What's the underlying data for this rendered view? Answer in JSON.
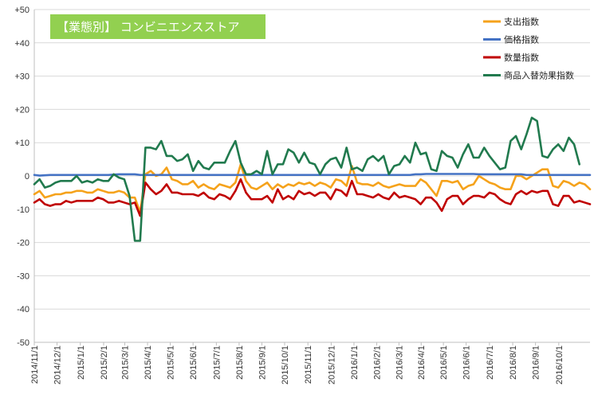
{
  "chart_data": {
    "type": "line",
    "title": "【業態別】 コンビニエンスストア",
    "xlabel": "",
    "ylabel": "",
    "ylim": [
      -50,
      50
    ],
    "y_ticks": [
      50,
      40,
      30,
      20,
      10,
      0,
      -10,
      -20,
      -30,
      -40,
      -50
    ],
    "y_tick_labels": [
      "+50",
      "+40",
      "+30",
      "+20",
      "+10",
      "0",
      "-10",
      "-20",
      "-30",
      "-40",
      "-50"
    ],
    "x_tick_labels": [
      "2014/11/1",
      "2014/12/1",
      "2015/1/1",
      "2015/2/1",
      "2015/3/1",
      "2015/4/1",
      "2015/5/1",
      "2015/6/1",
      "2015/7/1",
      "2015/8/1",
      "2015/9/1",
      "2015/10/1",
      "2015/11/1",
      "2015/12/1",
      "2016/1/1",
      "2016/2/1",
      "2016/3/1",
      "2016/4/1",
      "2016/5/1",
      "2016/6/1",
      "2016/7/1",
      "2016/8/1",
      "2016/9/1",
      "2016/10/1"
    ],
    "x_tick_weeks": [
      0,
      4.3,
      8.7,
      13.1,
      17.1,
      21.4,
      25.7,
      30.0,
      34.4,
      38.7,
      43.0,
      47.3,
      51.7,
      56.1,
      60.4,
      64.7,
      68.9,
      73.1,
      77.3,
      81.6,
      86.0,
      90.4,
      94.7,
      99.1
    ],
    "grid": "horizontal",
    "legend_position": "top-right",
    "series": [
      {
        "name": "支出指数",
        "color": "#f5a21b",
        "values": [
          -5.5,
          -4.5,
          -6.5,
          -6,
          -5.5,
          -5.5,
          -5,
          -5,
          -4.5,
          -4.5,
          -5,
          -5,
          -4,
          -4.5,
          -5,
          -5,
          -4.5,
          -5,
          -6.5,
          -6.5,
          -11,
          0.5,
          1.5,
          0,
          0.5,
          2.5,
          -1,
          -1.5,
          -2.5,
          -2.5,
          -1.5,
          -3.5,
          -2.5,
          -3.5,
          -4,
          -2.5,
          -3,
          -3.5,
          -2,
          3.5,
          -1.5,
          -3.5,
          -4,
          -3,
          -2,
          -4,
          -2.5,
          -3.5,
          -2.5,
          -3,
          -2,
          -2.5,
          -2,
          -3,
          -2,
          -2.5,
          -3.5,
          -1,
          -1.5,
          -3,
          3,
          -2,
          -2.5,
          -2.5,
          -3,
          -2,
          -3,
          -3.5,
          -3,
          -2.5,
          -3,
          -3,
          -3,
          -1,
          -2,
          -4,
          -6,
          -1.5,
          -1.5,
          -2,
          -1.5,
          -4,
          -3,
          -2.5,
          0,
          -1,
          -2,
          -2.5,
          -3.5,
          -4,
          -4,
          0,
          0,
          -1,
          0,
          1,
          2,
          2,
          -3,
          -3.5,
          -1.5,
          -2,
          -3,
          -2,
          -2.5,
          -4
        ]
      },
      {
        "name": "価格指数",
        "color": "#4472c4",
        "values": [
          0.3,
          0.1,
          0.2,
          0.3,
          0.3,
          0.3,
          0.3,
          0.3,
          0.3,
          0.3,
          0.3,
          0.3,
          0.3,
          0.3,
          0.3,
          0.4,
          0.5,
          0.5,
          0.5,
          0.5,
          0.3,
          0.3,
          0.3,
          0.3,
          0.3,
          0.3,
          0.3,
          0.3,
          0.3,
          0.3,
          0.3,
          0.3,
          0.3,
          0.3,
          0.3,
          0.3,
          0.3,
          0.3,
          0.3,
          0.3,
          0.3,
          0.3,
          0.3,
          0.3,
          0.3,
          0.3,
          0.3,
          0.3,
          0.3,
          0.3,
          0.3,
          0.3,
          0.3,
          0.3,
          0.3,
          0.3,
          0.3,
          0.3,
          0.3,
          0.3,
          0.3,
          0.3,
          0.3,
          0.3,
          0.3,
          0.3,
          0.3,
          0.3,
          0.3,
          0.3,
          0.3,
          0.3,
          0.5,
          0.5,
          0.6,
          0.6,
          0.6,
          0.6,
          0.6,
          0.6,
          0.6,
          0.6,
          0.6,
          0.6,
          0.5,
          0.5,
          0.5,
          0.5,
          0.5,
          0.5,
          0.5,
          0.5,
          0.5,
          0.3,
          0.3,
          0.3,
          0.3,
          0.3,
          0.3,
          0.3,
          0.3,
          0.3,
          0.3,
          0.3,
          0.3,
          0.3
        ]
      },
      {
        "name": "数量指数",
        "color": "#c00000",
        "values": [
          -8,
          -7,
          -8.5,
          -9,
          -8.5,
          -8.5,
          -7.5,
          -8,
          -7.5,
          -7.5,
          -7.5,
          -7.5,
          -6.5,
          -7,
          -8,
          -8,
          -7.5,
          -8,
          -8.5,
          -8,
          -12,
          -2,
          -4,
          -5.5,
          -4.5,
          -2.5,
          -5,
          -5,
          -5.5,
          -5.5,
          -5.5,
          -6,
          -5,
          -6.5,
          -7,
          -5.5,
          -6,
          -7,
          -4.5,
          -1,
          -5,
          -7,
          -7,
          -7,
          -6,
          -8,
          -4,
          -7,
          -6,
          -7,
          -4.5,
          -5.5,
          -5,
          -6,
          -5,
          -5,
          -7,
          -4,
          -4.5,
          -6,
          -1.5,
          -5.5,
          -5.5,
          -6,
          -6.5,
          -5.5,
          -6.5,
          -7,
          -5,
          -6.5,
          -6,
          -6.5,
          -7,
          -8.5,
          -6.5,
          -6.5,
          -8,
          -10.5,
          -7,
          -6,
          -6,
          -8.5,
          -7,
          -6,
          -6,
          -6.5,
          -5,
          -5.5,
          -7,
          -8,
          -8.5,
          -5.5,
          -4.5,
          -5.5,
          -4.5,
          -5,
          -4.5,
          -4.5,
          -8.5,
          -9,
          -6,
          -6,
          -8,
          -7.5,
          -8,
          -8.5
        ]
      },
      {
        "name": "商品入替効果指数",
        "color": "#217a4e",
        "values": [
          -2.5,
          -1,
          -3.5,
          -3,
          -2,
          -1.5,
          -1.5,
          -1.5,
          0,
          -2,
          -1.5,
          -2,
          -1,
          -1.5,
          -1.5,
          0.5,
          -0.5,
          -1,
          -6,
          -19.5,
          -19.5,
          8.5,
          8.5,
          8,
          10.5,
          6,
          6,
          4.5,
          5,
          6.5,
          1.5,
          4.5,
          2.5,
          2,
          4,
          4,
          4,
          7.5,
          10.5,
          4,
          0.5,
          0.5,
          1.5,
          0.5,
          7.5,
          0.5,
          3.5,
          3.5,
          8,
          7,
          4,
          7,
          4,
          3.5,
          0.5,
          3.5,
          5,
          5.5,
          2.5,
          8.5,
          2,
          2.5,
          1.5,
          5,
          6,
          4.5,
          6,
          0.5,
          3,
          3.5,
          6,
          4,
          10,
          6.5,
          7,
          2,
          1.5,
          7.5,
          6,
          5.5,
          2.5,
          6.5,
          9.5,
          5.5,
          5.5,
          8.5,
          6,
          4,
          2,
          2.5,
          10.5,
          12,
          8,
          12.5,
          17.5,
          16.5,
          6,
          5.5,
          8,
          9.5,
          7.5,
          11.5,
          9.5,
          3.5
        ]
      }
    ]
  }
}
